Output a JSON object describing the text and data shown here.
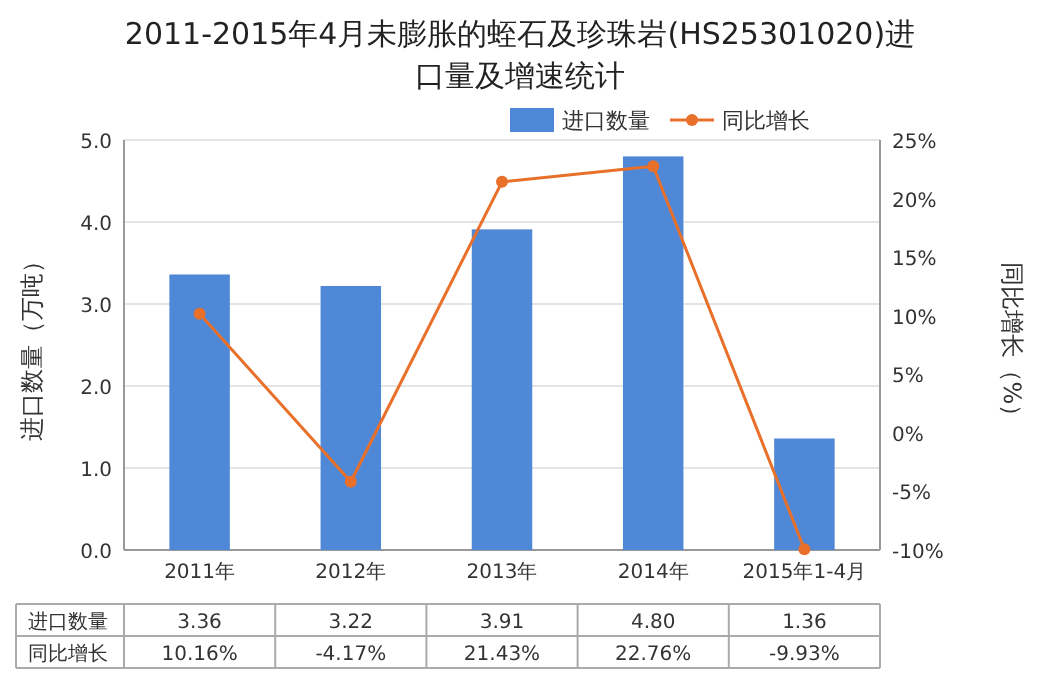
{
  "chart_data": {
    "type": "bar",
    "title": "2011-2015年4月未膨胀的蛭石及珍珠岩(HS25301020)进口量及增速统计",
    "ylabel": "进口数量（万吨）",
    "y2label": "同比增长（%）",
    "categories": [
      "2011年",
      "2012年",
      "2013年",
      "2014年",
      "2015年1-4月"
    ],
    "series": [
      {
        "name": "进口数量",
        "color": "#4f88d6",
        "values": [
          3.36,
          3.22,
          3.91,
          4.8,
          1.36
        ],
        "value_labels": [
          "3.36",
          "3.22",
          "3.91",
          "4.80",
          "1.36"
        ]
      },
      {
        "name": "同比增长",
        "type": "line",
        "axis": "y2",
        "color": "#e8702a",
        "marker": "circle",
        "values": [
          10.16,
          -4.17,
          21.43,
          22.76,
          -9.93
        ],
        "value_labels": [
          "10.16%",
          "-4.17%",
          "21.43%",
          "22.76%",
          "-9.93%"
        ]
      }
    ],
    "ylim": [
      0,
      5
    ],
    "yticks": [
      {
        "value": 0,
        "label": "0.0"
      },
      {
        "value": 1,
        "label": "1.0"
      },
      {
        "value": 2,
        "label": "2.0"
      },
      {
        "value": 3,
        "label": "3.0"
      },
      {
        "value": 4,
        "label": "4.0"
      },
      {
        "value": 5,
        "label": "5.0"
      }
    ],
    "y2lim": [
      -10,
      25
    ],
    "y2ticks": [
      {
        "value": -10,
        "label": "-10%"
      },
      {
        "value": -5,
        "label": "-5%"
      },
      {
        "value": 0,
        "label": "0%"
      },
      {
        "value": 5,
        "label": "5%"
      },
      {
        "value": 10,
        "label": "10%"
      },
      {
        "value": 15,
        "label": "15%"
      },
      {
        "value": 20,
        "label": "20%"
      },
      {
        "value": 25,
        "label": "25%"
      }
    ],
    "grid": "y",
    "legend": "top"
  }
}
